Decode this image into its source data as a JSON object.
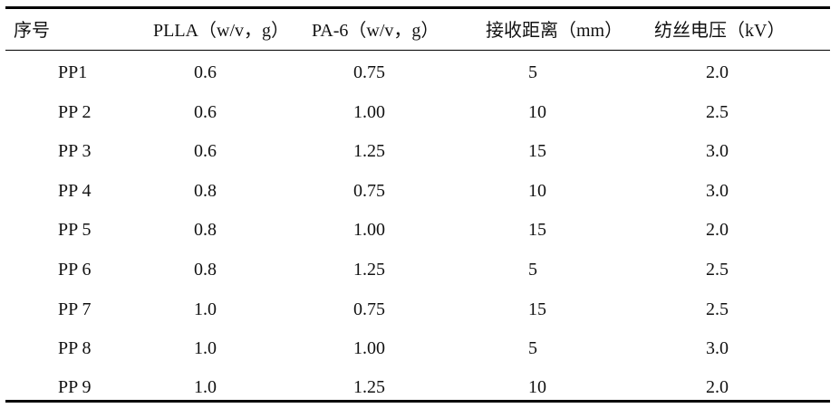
{
  "table": {
    "headers": [
      "序号",
      "PLLA（w/v，g）",
      "PA-6（w/v，g）",
      "接收距离（mm）",
      "纺丝电压（kV）"
    ],
    "rows": [
      [
        "PP1",
        "0.6",
        "0.75",
        "5",
        "2.0"
      ],
      [
        "PP 2",
        "0.6",
        "1.00",
        "10",
        "2.5"
      ],
      [
        "PP 3",
        "0.6",
        "1.25",
        "15",
        "3.0"
      ],
      [
        "PP 4",
        "0.8",
        "0.75",
        "10",
        "3.0"
      ],
      [
        "PP 5",
        "0.8",
        "1.00",
        "15",
        "2.0"
      ],
      [
        "PP 6",
        "0.8",
        "1.25",
        "5",
        "2.5"
      ],
      [
        "PP 7",
        "1.0",
        "0.75",
        "15",
        "2.5"
      ],
      [
        "PP 8",
        "1.0",
        "1.00",
        "5",
        "3.0"
      ],
      [
        "PP 9",
        "1.0",
        "1.25",
        "10",
        "2.0"
      ]
    ]
  }
}
